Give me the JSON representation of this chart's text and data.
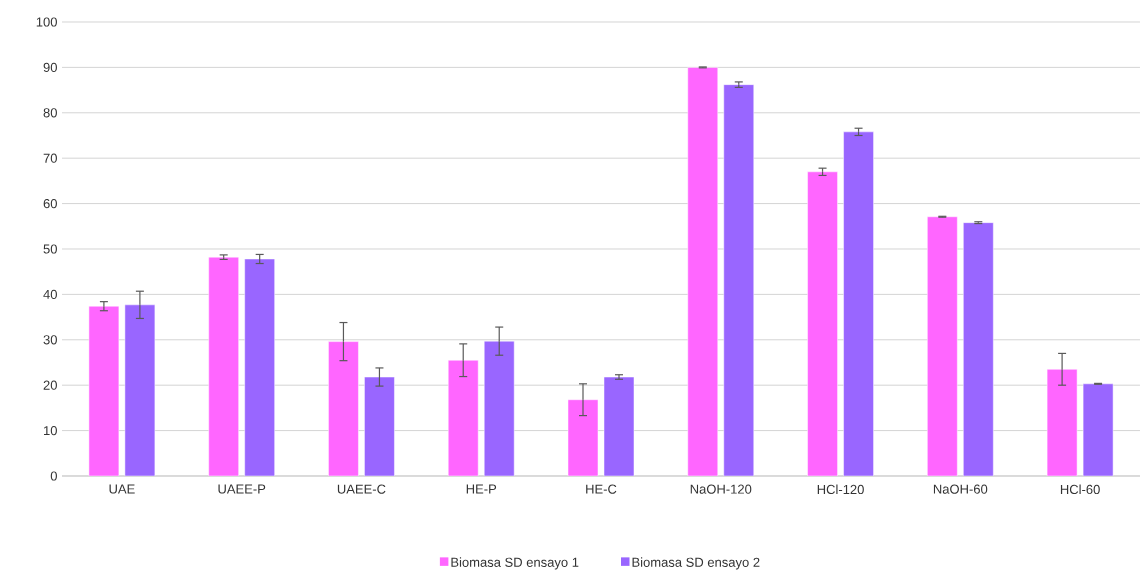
{
  "chart_data": {
    "type": "bar",
    "categories": [
      "UAE",
      "UAEE-P",
      "UAEE-C",
      "HE-P",
      "HE-C",
      "NaOH-120",
      "HCl-120",
      "NaOH-60",
      "HCl-60"
    ],
    "series": [
      {
        "name": "Biomasa SD ensayo 1",
        "color": "#ff66ff",
        "values": [
          37.4,
          48.2,
          29.6,
          25.5,
          16.8,
          90.0,
          67.0,
          57.1,
          23.5
        ],
        "errors": [
          1.0,
          0.5,
          4.2,
          3.6,
          3.5,
          0.1,
          0.8,
          0.1,
          3.5
        ]
      },
      {
        "name": "Biomasa SD ensayo 2",
        "color": "#9966ff",
        "values": [
          37.7,
          47.8,
          21.8,
          29.7,
          21.8,
          86.2,
          75.8,
          55.8,
          20.3
        ],
        "errors": [
          3.0,
          1.0,
          2.0,
          3.1,
          0.5,
          0.6,
          0.8,
          0.2,
          0.1
        ]
      }
    ],
    "ylim": [
      0,
      100
    ],
    "yticks": [
      0,
      10,
      20,
      30,
      40,
      50,
      60,
      70,
      80,
      90,
      100
    ],
    "grid": "y",
    "legend": "bottom"
  }
}
